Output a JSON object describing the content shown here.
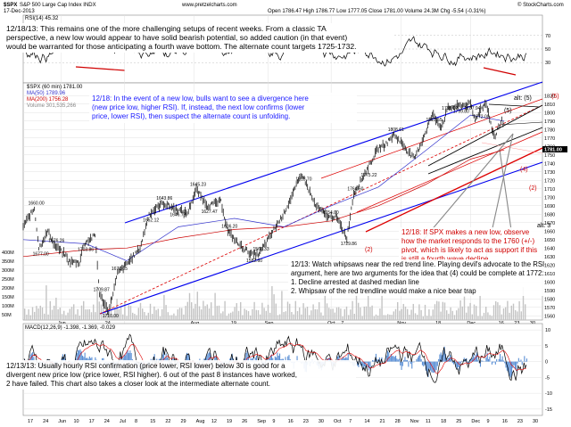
{
  "header": {
    "symbol": "$SPX",
    "name": "S&P 500 Large Cap Index INDX",
    "date": "17-Dec-2013",
    "website": "www.pretzelcharts.com",
    "ohlc": "Open 1786.47   High 1786.77   Low 1777.05   Close 1781.00   Volume 24.3M   Chg -5.54 (-0.31%)",
    "credit": "© StockCharts.com",
    "rsi_label": "RSI(14) 45.32",
    "price_legend_symbol": "$SPX (60 min) 1781.00",
    "legend_ma50": "MA(50) 1789.96",
    "legend_ma200": "MA(200) 1756.28",
    "legend_vol": "Volume 301,535,266",
    "macd_label": "MACD(12,26,9) -1.398, -1.369, -0.029"
  },
  "annotations": {
    "top": [
      "12/18/13: This remains one of the more challenging setups of recent weeks.  From a classic TA",
      "perspective, a new low would appear to have solid bearish potential, so added caution (in that event)",
      "would be warranted for those anticipating a fourth wave bottom.  The alternate count targets 1725-1732."
    ],
    "blue": [
      "12/18:  In the event of a new low, bulls want to see a divergence here",
      "(new price low, higher RSI).  If, instead, the next low confirms (lower",
      "price, lower RSI), then suspect the alternate count is unfolding."
    ],
    "red": [
      "12/18: If SPX makes a new low, observe",
      "how the market responds to the 1760 (+/-)",
      "pivot, which is likely to act as support if this",
      "is still a fourth wave decline."
    ],
    "middle": [
      "12/13: Watch whipsaws near the red trend line.  Playing devil's advocate to the RSI",
      "argument, here are two arguments for the idea that (4) could be complete at 1772:",
      "1.  Decline arrested at dashed median line",
      "2.  Whipsaw of the red trendline would make a nice bear trap"
    ],
    "bottom": [
      "12/13/13: Usually hourly RSI confirmation (price lower, RSI lower) below 30 is good for a",
      "divergent new price low (price lower, RSI higher).  6 out of the past 8 instances have worked,",
      "2 have failed.  This chart also takes a closer look at the intermediate alternate count."
    ]
  },
  "wave_labels": {
    "five": "(5)",
    "alt_five": "alt: (5)",
    "four": "(4)",
    "alt_three": "alt: 3",
    "q2": "(2)",
    "q2b": "(2)",
    "alt_paren5": "(5)"
  },
  "x_ticks": [
    "Jun",
    "24",
    "Aug",
    "19",
    "Sep",
    "Oct",
    "7",
    "Nov",
    "18",
    "Dec",
    "16",
    "23",
    "30"
  ],
  "x_ticks_top": [
    "17",
    "24",
    "Jun",
    "10",
    "17",
    "24",
    "Jul",
    "8",
    "15",
    "22",
    "29",
    "Aug",
    "12",
    "19",
    "26",
    "Sep",
    "9",
    "16",
    "23",
    "30",
    "Oct",
    "7",
    "14",
    "21",
    "28",
    "Nov",
    "11",
    "18",
    "25",
    "Dec",
    "9",
    "16",
    "23",
    "30"
  ],
  "y_ticks_price": [
    "1820",
    "1810",
    "1800",
    "1790",
    "1780",
    "1770",
    "1760",
    "1750",
    "1740",
    "1730",
    "1720",
    "1710",
    "1700",
    "1690",
    "1680",
    "1670",
    "1660",
    "1650",
    "1640",
    "1630",
    "1620",
    "1610",
    "1600",
    "1590",
    "1580",
    "1570",
    "1560"
  ],
  "y_ticks_volume": [
    "400M",
    "350M",
    "300M",
    "250M",
    "200M",
    "150M",
    "100M",
    "50M"
  ],
  "y_ticks_rsi": [
    "70",
    "50",
    "30"
  ],
  "y_ticks_macd": [
    "10",
    "5",
    "0",
    "-5",
    "-10",
    "-15"
  ],
  "last_price": "1781.00",
  "price_tags": [
    "1660.00",
    "1677.00",
    "1676.26",
    "1703.86",
    "1709.87",
    "1710.00",
    "1676.05",
    "1652.12",
    "1643.86",
    "1646.73",
    "1645.23",
    "1627.47",
    "1636.20",
    "1582.60",
    "1560.33",
    "1618.70",
    "1654.00",
    "1729.86",
    "1764.60",
    "1775.22",
    "1808.61",
    "1813.55",
    "1795.02",
    "1799.80",
    "1787.94",
    "1772.00"
  ],
  "colors": {
    "price": "#000000",
    "ma50": "#3333cc",
    "ma200": "#cc0000",
    "volume": "#b5b5b5",
    "channel_blue": "#0000ee",
    "channel_red": "#dd0000",
    "trend_black": "#000000",
    "grid": "#d9d9d9",
    "macd": "#000000",
    "macd_signal": "#e00000",
    "histogram": "#5a8fd5",
    "rsi": "#000000",
    "anno_blue": "#1a1aff",
    "anno_red": "#d00000"
  },
  "chart_data": {
    "type": "line",
    "title": "$SPX S&P 500 Large Cap Index INDX",
    "xlabel": "",
    "ylabel": "",
    "ylim": [
      1555,
      1835
    ],
    "grid": true,
    "legend": "top-left",
    "x_range": [
      "2013-05-17",
      "2013-12-17"
    ],
    "series": [
      {
        "name": "$SPX (60 min)",
        "x": [
          "2013-05-17",
          "2013-05-22",
          "2013-05-24",
          "2013-05-28",
          "2013-05-31",
          "2013-06-05",
          "2013-06-06",
          "2013-06-11",
          "2013-06-13",
          "2013-06-18",
          "2013-06-20",
          "2013-06-24",
          "2013-06-28",
          "2013-07-03",
          "2013-07-08",
          "2013-07-12",
          "2013-07-18",
          "2013-07-24",
          "2013-07-29",
          "2013-08-02",
          "2013-08-07",
          "2013-08-13",
          "2013-08-16",
          "2013-08-21",
          "2013-08-27",
          "2013-08-30",
          "2013-09-04",
          "2013-09-10",
          "2013-09-18",
          "2013-09-24",
          "2013-09-30",
          "2013-10-03",
          "2013-10-08",
          "2013-10-11",
          "2013-10-17",
          "2013-10-22",
          "2013-10-25",
          "2013-10-29",
          "2013-11-01",
          "2013-11-07",
          "2013-11-11",
          "2013-11-15",
          "2013-11-19",
          "2013-11-22",
          "2013-11-27",
          "2013-12-02",
          "2013-12-04",
          "2013-12-06",
          "2013-12-09",
          "2013-12-12",
          "2013-12-13",
          "2013-12-16",
          "2013-12-17"
        ],
        "values": [
          1666,
          1687,
          1640,
          1660,
          1643,
          1631,
          1624,
          1623,
          1645,
          1655,
          1585,
          1565,
          1610,
          1624,
          1640,
          1680,
          1693,
          1686,
          1681,
          1709,
          1690,
          1695,
          1660,
          1644,
          1632,
          1633,
          1655,
          1681,
          1728,
          1690,
          1676,
          1678,
          1652,
          1704,
          1733,
          1758,
          1762,
          1774,
          1765,
          1745,
          1770,
          1798,
          1783,
          1805,
          1808,
          1810,
          1790,
          1802,
          1812,
          1775,
          1772,
          1792,
          1781
        ]
      },
      {
        "name": "MA(50)",
        "x": [
          "2013-05-17",
          "2013-06-14",
          "2013-07-02",
          "2013-07-25",
          "2013-08-19",
          "2013-09-10",
          "2013-10-01",
          "2013-10-22",
          "2013-11-12",
          "2013-12-02",
          "2013-12-17"
        ],
        "values": [
          1650,
          1645,
          1625,
          1665,
          1675,
          1665,
          1690,
          1712,
          1755,
          1797,
          1790
        ]
      },
      {
        "name": "MA(200)",
        "x": [
          "2013-05-17",
          "2013-06-14",
          "2013-07-02",
          "2013-07-25",
          "2013-08-19",
          "2013-09-10",
          "2013-10-01",
          "2013-10-22",
          "2013-11-12",
          "2013-12-02",
          "2013-12-17"
        ],
        "values": [
          1630,
          1638,
          1640,
          1652,
          1662,
          1665,
          1672,
          1690,
          1715,
          1745,
          1756
        ]
      }
    ],
    "volume": {
      "name": "Volume",
      "unit": "M"
    },
    "rsi": {
      "name": "RSI(14)",
      "ylim": [
        0,
        100
      ],
      "levels": [
        70,
        30
      ],
      "last": 45.32
    },
    "macd": {
      "name": "MACD(12,26,9)",
      "macd": -1.398,
      "signal": -1.369,
      "histogram": -0.029
    }
  }
}
